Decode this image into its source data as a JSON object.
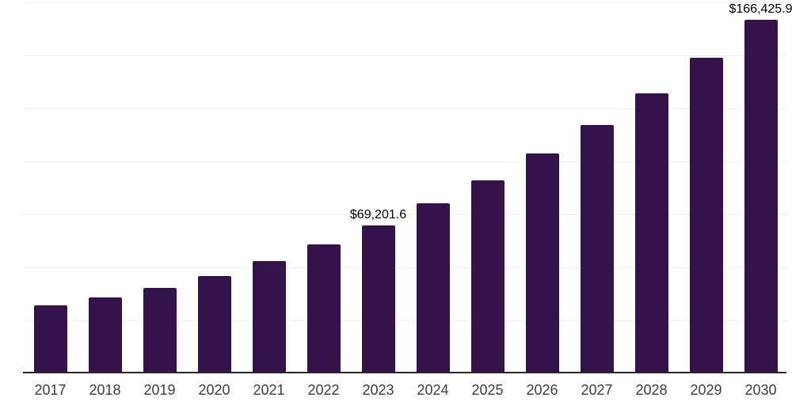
{
  "chart_data": {
    "type": "bar",
    "title": "",
    "xlabel": "",
    "ylabel": "",
    "categories": [
      "2017",
      "2018",
      "2019",
      "2020",
      "2021",
      "2022",
      "2023",
      "2024",
      "2025",
      "2026",
      "2027",
      "2028",
      "2029",
      "2030"
    ],
    "values": [
      31300,
      35100,
      39600,
      45300,
      52200,
      60100,
      69201.6,
      79400,
      90400,
      102900,
      116300,
      131200,
      148300,
      166425.9
    ],
    "value_labels": [
      "",
      "",
      "",
      "",
      "",
      "",
      "$69,201.6",
      "",
      "",
      "",
      "",
      "",
      "",
      "$166,425.9"
    ],
    "ylim": [
      0,
      175000
    ],
    "gridline_interval": 25000,
    "grid": "horizontal",
    "legend": "none",
    "y_axis_tick_labels_visible": false
  },
  "colors": {
    "bar": "#36124B",
    "gridline": "#eeeeee",
    "axis_line": "#262626",
    "tick_label": "#3d3d3d",
    "data_label": "#000000",
    "background": "#ffffff"
  }
}
